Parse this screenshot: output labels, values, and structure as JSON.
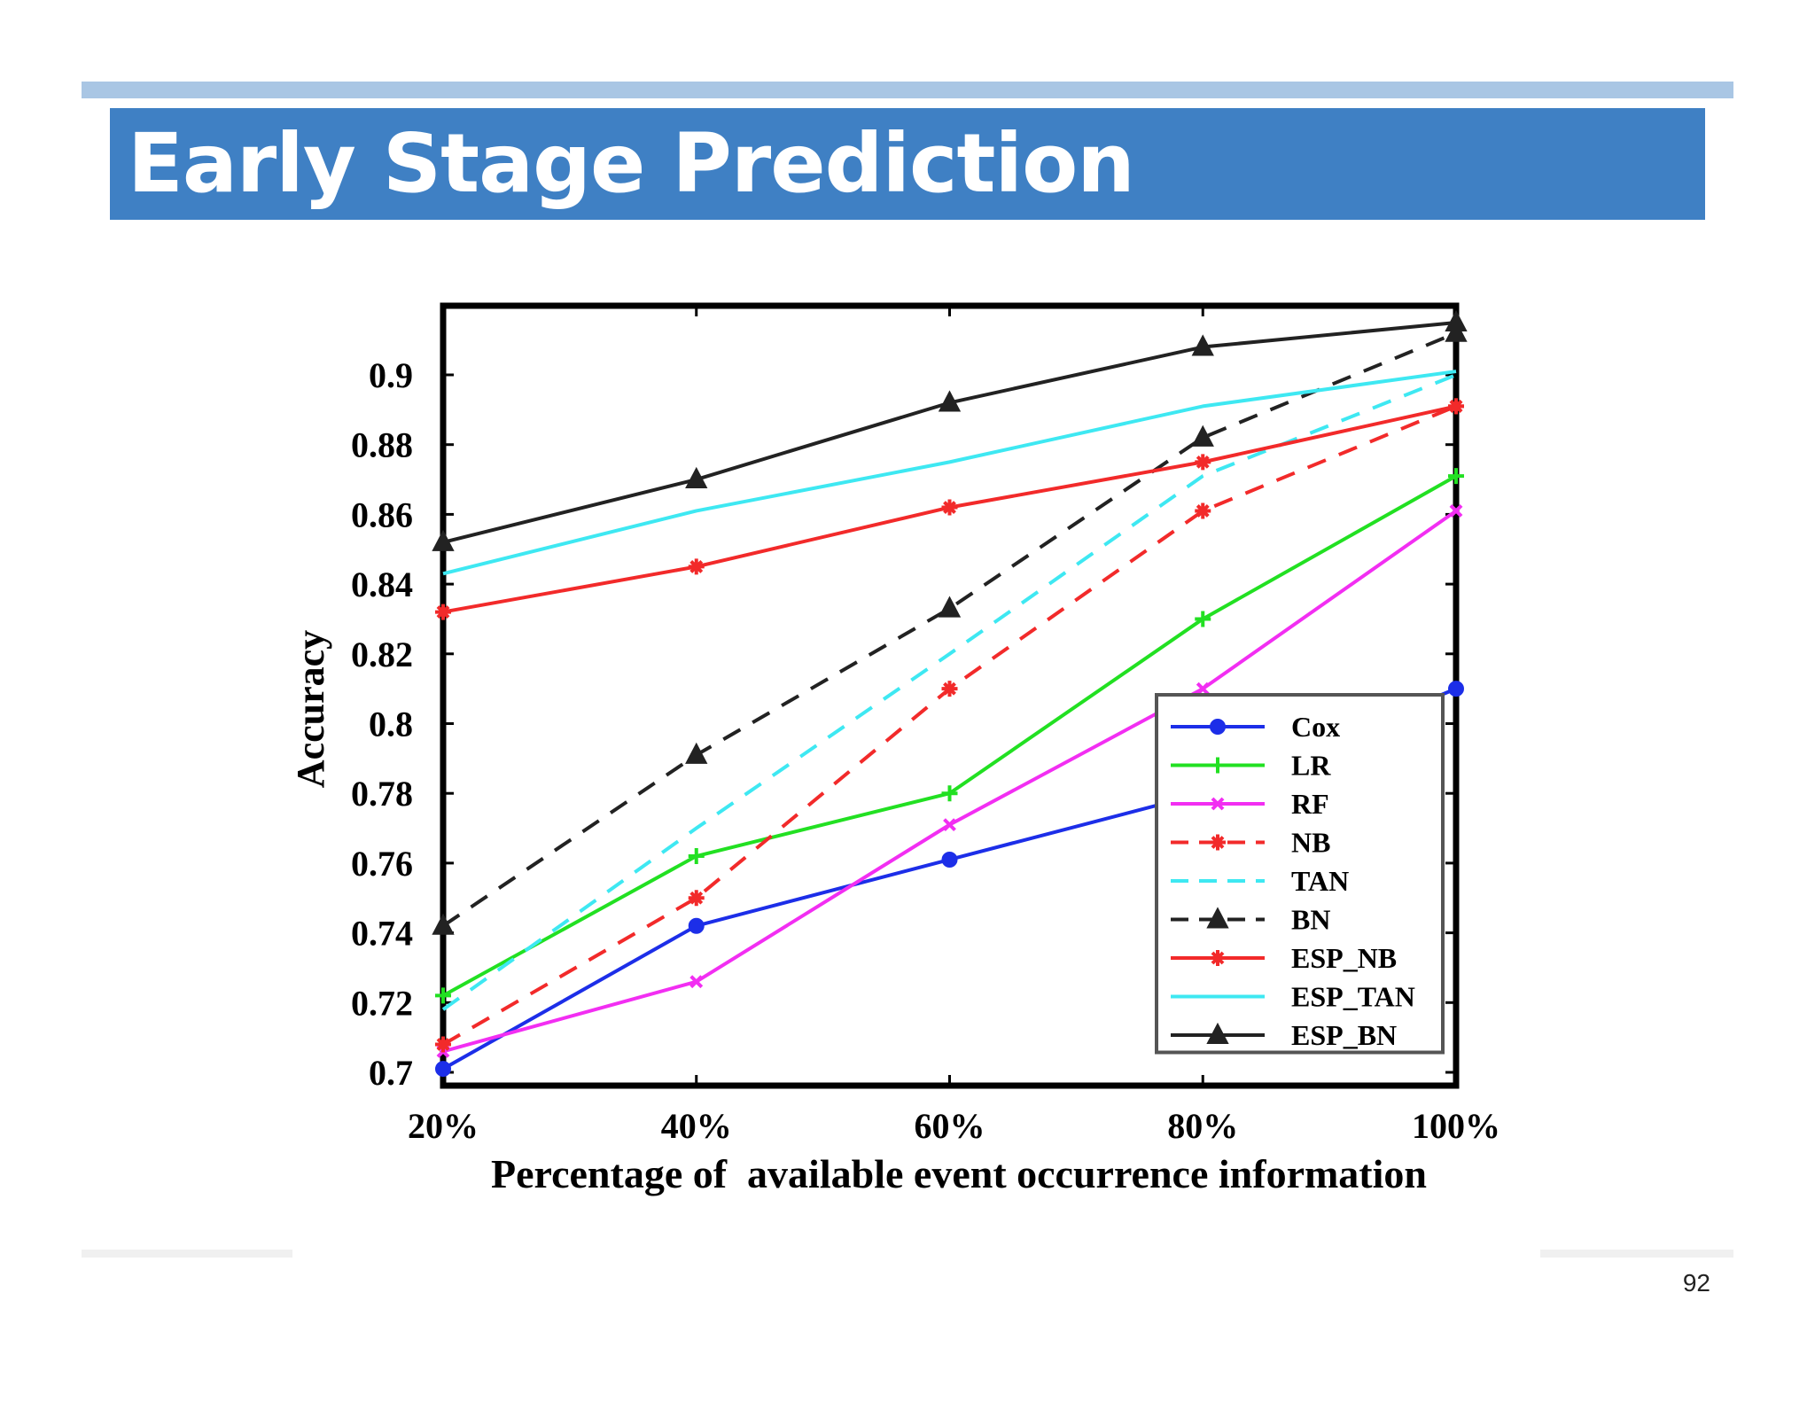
{
  "slide": {
    "title": "Early Stage Prediction",
    "page_number": "92"
  },
  "colors": {
    "title_bar": "#3f80c4",
    "top_rule": "#a9c6e4",
    "title_text": "#ffffff"
  },
  "chart_data": {
    "type": "line",
    "title": "",
    "xlabel": "Percentage of  available event occurrence information",
    "ylabel": "Accuracy",
    "categories": [
      "20%",
      "40%",
      "60%",
      "80%",
      "100%"
    ],
    "ylim": [
      0.7,
      0.92
    ],
    "yticks": [
      "0.7",
      "0.72",
      "0.74",
      "0.76",
      "0.78",
      "0.8",
      "0.82",
      "0.84",
      "0.86",
      "0.88",
      "0.9"
    ],
    "grid": false,
    "legend_position": "bottom-right",
    "series": [
      {
        "name": "Cox",
        "color": "#1c2ee8",
        "dash": "solid",
        "marker": "circle",
        "values": [
          0.701,
          0.742,
          0.761,
          0.78,
          0.81
        ]
      },
      {
        "name": "LR",
        "color": "#22e022",
        "dash": "solid",
        "marker": "plus",
        "values": [
          0.722,
          0.762,
          0.78,
          0.83,
          0.871
        ]
      },
      {
        "name": "RF",
        "color": "#f22ef2",
        "dash": "solid",
        "marker": "x",
        "values": [
          0.706,
          0.726,
          0.771,
          0.81,
          0.861
        ]
      },
      {
        "name": "NB",
        "color": "#f22a2a",
        "dash": "dashed",
        "marker": "star",
        "values": [
          0.708,
          0.75,
          0.81,
          0.861,
          0.891
        ]
      },
      {
        "name": "TAN",
        "color": "#3ee8f2",
        "dash": "dashed",
        "marker": "none",
        "values": [
          0.718,
          0.77,
          0.82,
          0.871,
          0.9
        ]
      },
      {
        "name": "BN",
        "color": "#222222",
        "dash": "dashed",
        "marker": "triangle",
        "values": [
          0.742,
          0.791,
          0.833,
          0.882,
          0.912
        ]
      },
      {
        "name": "ESP_NB",
        "color": "#f22a2a",
        "dash": "solid",
        "marker": "star",
        "values": [
          0.832,
          0.845,
          0.862,
          0.875,
          0.891
        ]
      },
      {
        "name": "ESP_TAN",
        "color": "#3ee8f2",
        "dash": "solid",
        "marker": "none",
        "values": [
          0.843,
          0.861,
          0.875,
          0.891,
          0.901
        ]
      },
      {
        "name": "ESP_BN",
        "color": "#222222",
        "dash": "solid",
        "marker": "triangle",
        "values": [
          0.852,
          0.87,
          0.892,
          0.908,
          0.915
        ]
      }
    ]
  }
}
